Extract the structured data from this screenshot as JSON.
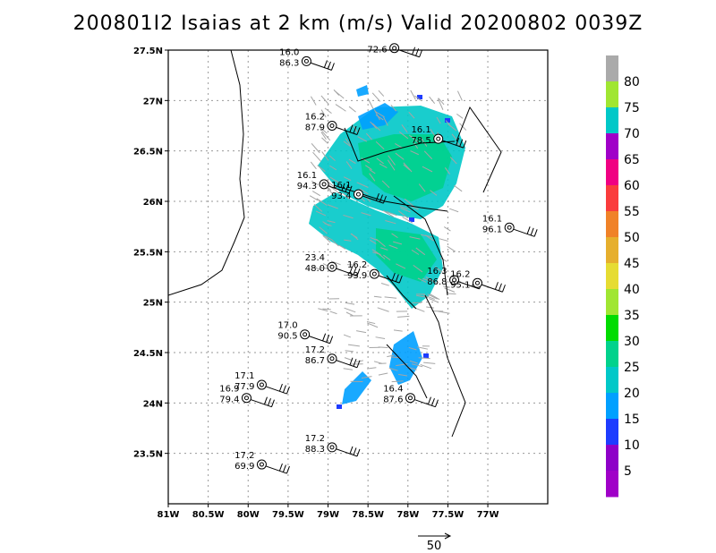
{
  "title": "200801I2 Isaias at 2 km (m/s) Valid 20200802 0039Z",
  "chart_data": {
    "type": "scatter",
    "xlim": [
      -81.0,
      -76.25
    ],
    "ylim": [
      23.0,
      27.5
    ],
    "x_ticks": [
      {
        "value": -81.0,
        "label": "81W"
      },
      {
        "value": -80.5,
        "label": "80.5W"
      },
      {
        "value": -80.0,
        "label": "80W"
      },
      {
        "value": -79.5,
        "label": "79.5W"
      },
      {
        "value": -79.0,
        "label": "79W"
      },
      {
        "value": -78.5,
        "label": "78.5W"
      },
      {
        "value": -78.0,
        "label": "78W"
      },
      {
        "value": -77.5,
        "label": "77.5W"
      },
      {
        "value": -77.0,
        "label": "77W"
      }
    ],
    "y_ticks": [
      {
        "value": 23.5,
        "label": "23.5N"
      },
      {
        "value": 24.0,
        "label": "24N"
      },
      {
        "value": 24.5,
        "label": "24.5N"
      },
      {
        "value": 25.0,
        "label": "25N"
      },
      {
        "value": 25.5,
        "label": "25.5N"
      },
      {
        "value": 26.0,
        "label": "26N"
      },
      {
        "value": 26.5,
        "label": "26.5N"
      },
      {
        "value": 27.0,
        "label": "27N"
      },
      {
        "value": 27.5,
        "label": "27.5N"
      }
    ],
    "grid": true,
    "colorbar": {
      "labels": [
        "5",
        "10",
        "15",
        "20",
        "25",
        "30",
        "35",
        "40",
        "45",
        "50",
        "55",
        "60",
        "65",
        "70",
        "75",
        "80"
      ],
      "colors": [
        "#a000c8",
        "#8e00c8",
        "#1e3cff",
        "#00a0ff",
        "#00c8c8",
        "#00d28c",
        "#00dc00",
        "#a0e632",
        "#e6dc32",
        "#e6af2d",
        "#f08228",
        "#fa3c3c",
        "#f00082",
        "#a000c8",
        "#00c8c8",
        "#a0e632",
        "#aaaaaa"
      ]
    },
    "stations": [
      {
        "lon": -79.27,
        "lat": 27.39,
        "t1": "16.0",
        "t2": "86.3"
      },
      {
        "lon": -78.17,
        "lat": 27.52,
        "t1": "",
        "t2": "72.6"
      },
      {
        "lon": -78.95,
        "lat": 26.75,
        "t1": "16.2",
        "t2": "87.9"
      },
      {
        "lon": -77.62,
        "lat": 26.62,
        "t1": "16.1",
        "t2": "78.5"
      },
      {
        "lon": -79.05,
        "lat": 26.17,
        "t1": "16.1",
        "t2": "94.3"
      },
      {
        "lon": -78.62,
        "lat": 26.07,
        "t1": "16.1",
        "t2": "93.4"
      },
      {
        "lon": -76.73,
        "lat": 25.74,
        "t1": "16.1",
        "t2": "96.1"
      },
      {
        "lon": -78.95,
        "lat": 25.35,
        "t1": "23.4",
        "t2": "48.0"
      },
      {
        "lon": -78.42,
        "lat": 25.28,
        "t1": "16.2",
        "t2": "93.9"
      },
      {
        "lon": -77.42,
        "lat": 25.22,
        "t1": "16.3",
        "t2": "86.8"
      },
      {
        "lon": -77.13,
        "lat": 25.19,
        "t1": "16.2",
        "t2": "95.1"
      },
      {
        "lon": -79.29,
        "lat": 24.68,
        "t1": "17.0",
        "t2": "90.5"
      },
      {
        "lon": -78.95,
        "lat": 24.44,
        "t1": "17.2",
        "t2": "86.7"
      },
      {
        "lon": -79.83,
        "lat": 24.18,
        "t1": "17.1",
        "t2": "77.9"
      },
      {
        "lon": -80.02,
        "lat": 24.05,
        "t1": "16.9",
        "t2": "79.4"
      },
      {
        "lon": -77.97,
        "lat": 24.05,
        "t1": "16.4",
        "t2": "87.6"
      },
      {
        "lon": -78.95,
        "lat": 23.56,
        "t1": "17.2",
        "t2": "88.3"
      },
      {
        "lon": -79.83,
        "lat": 23.39,
        "t1": "17.2",
        "t2": "69.9"
      }
    ],
    "reference_vector": {
      "label": "50"
    }
  }
}
